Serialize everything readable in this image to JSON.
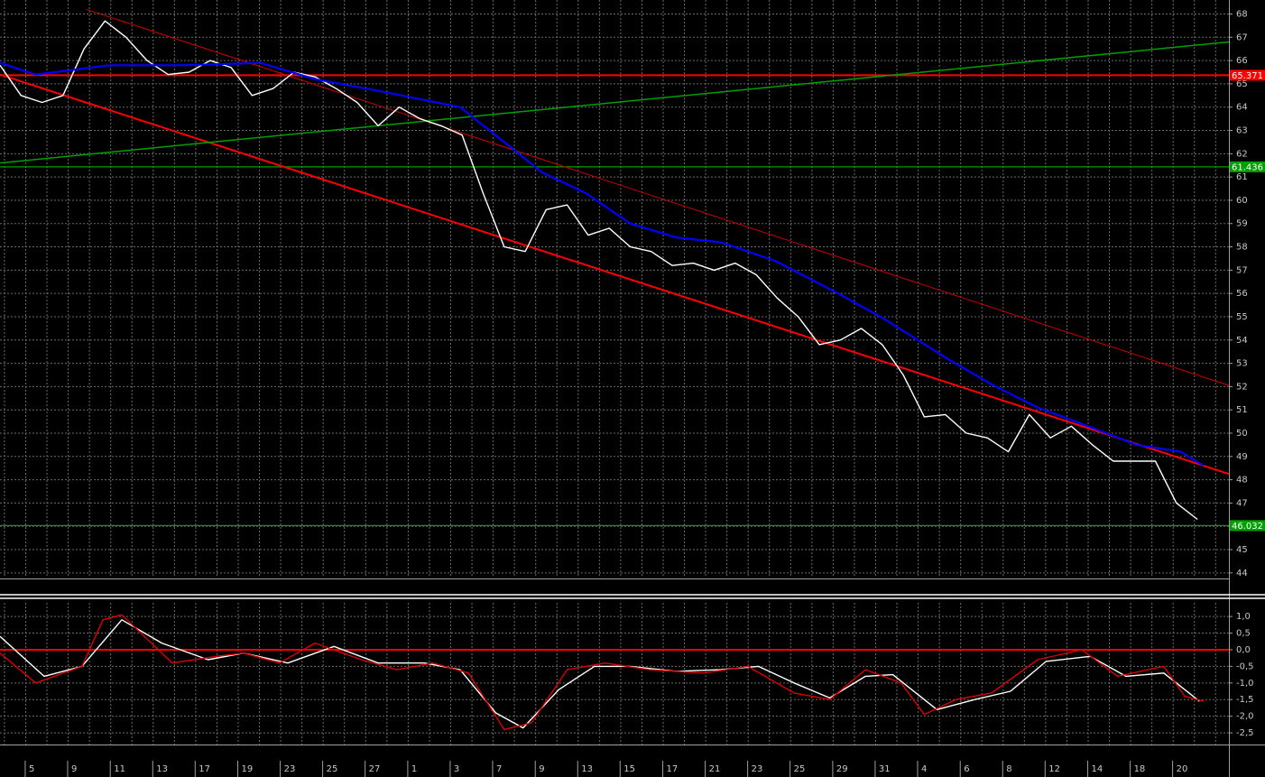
{
  "chart_data": [
    {
      "type": "line",
      "xlim": [
        0,
        58.5
      ],
      "ylim": [
        43.8,
        68.6
      ],
      "yticks": [
        44,
        45,
        46,
        47,
        48,
        49,
        50,
        51,
        52,
        53,
        54,
        55,
        56,
        57,
        58,
        59,
        60,
        61,
        62,
        63,
        64,
        65,
        66,
        67,
        68
      ],
      "grid": true,
      "series": [
        {
          "color": "#ffffff",
          "x": [
            0,
            1,
            2,
            3,
            4,
            5,
            6,
            7,
            8,
            9,
            10,
            11,
            12,
            13,
            14,
            15,
            16,
            17,
            18,
            19,
            20,
            21,
            22,
            23,
            24,
            25,
            26,
            27,
            28,
            29,
            30,
            31,
            32,
            33,
            34,
            35,
            36,
            37,
            38,
            39,
            40,
            41,
            42,
            43,
            44,
            45,
            46,
            47,
            48,
            49,
            50,
            51,
            52,
            53,
            54,
            55,
            56,
            57
          ],
          "values": [
            65.8,
            64.5,
            64.2,
            64.5,
            66.5,
            67.7,
            67.0,
            66.0,
            65.4,
            65.5,
            66.0,
            65.7,
            64.5,
            64.8,
            65.5,
            65.3,
            64.8,
            64.2,
            63.2,
            64.0,
            63.5,
            63.2,
            62.8,
            60.3,
            58.0,
            57.8,
            59.6,
            59.8,
            58.5,
            58.8,
            58.0,
            57.8,
            57.2,
            57.3,
            57.0,
            57.3,
            56.8,
            55.8,
            55.0,
            53.8,
            54.0,
            54.5,
            53.8,
            52.5,
            50.7,
            50.8,
            50.0,
            49.8,
            49.2,
            50.8,
            49.8,
            50.3,
            49.5,
            48.8,
            48.8,
            48.8,
            47.0,
            46.3
          ]
        },
        {
          "color": "#0000ff",
          "x": [
            0,
            1.7,
            5.2,
            8.6,
            12.4,
            15,
            18,
            21.9,
            24,
            25.8,
            27.9,
            30,
            32.2,
            34.3,
            36.9,
            39.9,
            42.1,
            45.1,
            47.2,
            49.4,
            51.5,
            54.1,
            56.2,
            57.3
          ],
          "values": [
            65.9,
            65.4,
            65.8,
            65.8,
            65.9,
            65.2,
            64.7,
            64.0,
            62.5,
            61.2,
            60.3,
            59.0,
            58.4,
            58.2,
            57.4,
            56.0,
            54.9,
            53.2,
            52.1,
            51.1,
            50.4,
            49.5,
            49.2,
            48.6
          ]
        }
      ],
      "levels": {
        "values": [
          65.371,
          61.436,
          46.032
        ],
        "colors": [
          "#ff0000",
          "#00a000",
          "#00a000"
        ]
      },
      "trendlines": [
        {
          "color": "#ff0000",
          "x": [
            0,
            58.5
          ],
          "values": [
            65.4,
            48.25
          ]
        },
        {
          "color": "#cc0000",
          "x": [
            4.1,
            58.5
          ],
          "values": [
            68.2,
            52.05
          ]
        },
        {
          "color": "#00a000",
          "x": [
            0,
            58.5
          ],
          "values": [
            61.6,
            66.8
          ]
        }
      ]
    },
    {
      "type": "line",
      "xlim": [
        0,
        58.5
      ],
      "ylim": [
        -2.85,
        1.41
      ],
      "yticks": [
        {
          "value": 1.0,
          "label": "1,0"
        },
        {
          "value": 0.5,
          "label": "0,5"
        },
        {
          "value": 0.0,
          "label": "0,0"
        },
        {
          "value": -0.5,
          "label": "-0,5"
        },
        {
          "value": -1.0,
          "label": "-1,0"
        },
        {
          "value": -1.5,
          "label": "-1,5"
        },
        {
          "value": -2.0,
          "label": "-2,0"
        },
        {
          "value": -2.5,
          "label": "-2,5"
        }
      ],
      "xticks": [
        {
          "value": 1.2,
          "label": "5"
        },
        {
          "value": 3.22,
          "label": "9"
        },
        {
          "value": 5.25,
          "label": "11"
        },
        {
          "value": 7.27,
          "label": "13"
        },
        {
          "value": 9.29,
          "label": "17"
        },
        {
          "value": 11.32,
          "label": "19"
        },
        {
          "value": 13.34,
          "label": "23"
        },
        {
          "value": 15.36,
          "label": "25"
        },
        {
          "value": 17.38,
          "label": "27"
        },
        {
          "value": 19.41,
          "label": "1"
        },
        {
          "value": 21.43,
          "label": "3"
        },
        {
          "value": 23.45,
          "label": "7"
        },
        {
          "value": 25.48,
          "label": "9"
        },
        {
          "value": 27.5,
          "label": "13"
        },
        {
          "value": 29.52,
          "label": "15"
        },
        {
          "value": 31.55,
          "label": "17"
        },
        {
          "value": 33.57,
          "label": "21"
        },
        {
          "value": 35.59,
          "label": "23"
        },
        {
          "value": 37.61,
          "label": "25"
        },
        {
          "value": 39.64,
          "label": "29"
        },
        {
          "value": 41.66,
          "label": "31"
        },
        {
          "value": 43.68,
          "label": "4"
        },
        {
          "value": 45.71,
          "label": "6"
        },
        {
          "value": 47.73,
          "label": "8"
        },
        {
          "value": 49.75,
          "label": "12"
        },
        {
          "value": 51.78,
          "label": "14"
        },
        {
          "value": 53.8,
          "label": "18"
        },
        {
          "value": 55.82,
          "label": "20"
        }
      ],
      "grid": true,
      "series": [
        {
          "color": "#ffffff",
          "x": [
            0,
            2.1,
            3.9,
            5.8,
            7.7,
            9.9,
            11.6,
            13.7,
            15.9,
            18,
            20.2,
            21.9,
            23.6,
            24.9,
            26.6,
            28.3,
            30,
            32.2,
            34.3,
            36.1,
            37.8,
            39.5,
            41.2,
            42.5,
            44.6,
            46.4,
            48.1,
            49.8,
            51.9,
            53.6,
            55.4,
            57.1
          ],
          "values": [
            0.4,
            -0.8,
            -0.5,
            0.9,
            0.2,
            -0.3,
            -0.1,
            -0.4,
            0.1,
            -0.4,
            -0.4,
            -0.6,
            -1.9,
            -2.35,
            -1.2,
            -0.5,
            -0.5,
            -0.65,
            -0.6,
            -0.5,
            -1.0,
            -1.45,
            -0.8,
            -0.75,
            -1.8,
            -1.5,
            -1.25,
            -0.35,
            -0.2,
            -0.8,
            -0.7,
            -1.55
          ]
        },
        {
          "color": "#dd0000",
          "x": [
            0,
            1.7,
            3.9,
            4.9,
            5.8,
            8.2,
            10.3,
            11.6,
            13.3,
            15,
            17.2,
            18.9,
            20.6,
            22.3,
            24,
            25.3,
            27,
            28.8,
            30.9,
            33.5,
            35.6,
            37.8,
            39.5,
            41.2,
            42.9,
            44,
            45.5,
            47.2,
            49.4,
            51.5,
            53.2,
            55.4,
            56.4,
            57.3
          ],
          "values": [
            -0.1,
            -1.0,
            -0.5,
            0.9,
            1.05,
            -0.4,
            -0.2,
            -0.1,
            -0.4,
            0.2,
            -0.3,
            -0.6,
            -0.4,
            -0.7,
            -2.4,
            -2.2,
            -0.6,
            -0.4,
            -0.6,
            -0.7,
            -0.5,
            -1.3,
            -1.5,
            -0.6,
            -1.0,
            -1.95,
            -1.5,
            -1.3,
            -0.3,
            0.0,
            -0.8,
            -0.5,
            -1.4,
            -1.55
          ]
        }
      ],
      "levels": {
        "values": [
          0
        ],
        "colors": [
          "#ff0000"
        ]
      }
    }
  ]
}
